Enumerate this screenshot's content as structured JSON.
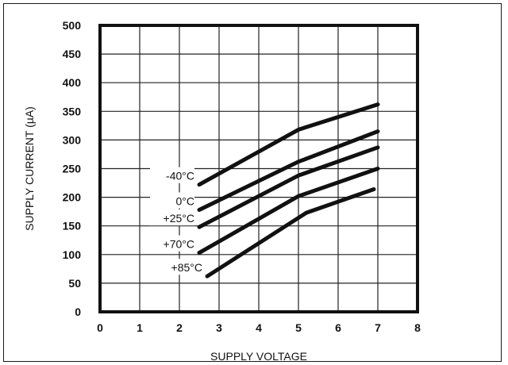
{
  "chart_data": {
    "type": "line",
    "title": "",
    "xlabel": "SUPPLY VOLTAGE",
    "ylabel": "SUPPLY CURRENT (µA)",
    "xlim": [
      0,
      8
    ],
    "ylim": [
      0,
      500
    ],
    "xticks": [
      "0",
      "1",
      "2",
      "3",
      "4",
      "5",
      "6",
      "7",
      "8"
    ],
    "yticks": [
      "0",
      "50",
      "100",
      "150",
      "200",
      "250",
      "300",
      "350",
      "400",
      "450",
      "500"
    ],
    "grid": true,
    "series": [
      {
        "name": "-40°C",
        "x": [
          2.5,
          5,
          7
        ],
        "values": [
          222,
          318,
          362
        ]
      },
      {
        "name": "0°C",
        "x": [
          2.5,
          5,
          7
        ],
        "values": [
          178,
          262,
          315
        ]
      },
      {
        "name": "+25°C",
        "x": [
          2.5,
          5,
          7
        ],
        "values": [
          148,
          238,
          287
        ]
      },
      {
        "name": "+70°C",
        "x": [
          2.5,
          5,
          7
        ],
        "values": [
          103,
          202,
          250
        ]
      },
      {
        "name": "+85°C",
        "x": [
          2.7,
          5.2,
          6.9
        ],
        "values": [
          62,
          173,
          214
        ]
      }
    ]
  }
}
